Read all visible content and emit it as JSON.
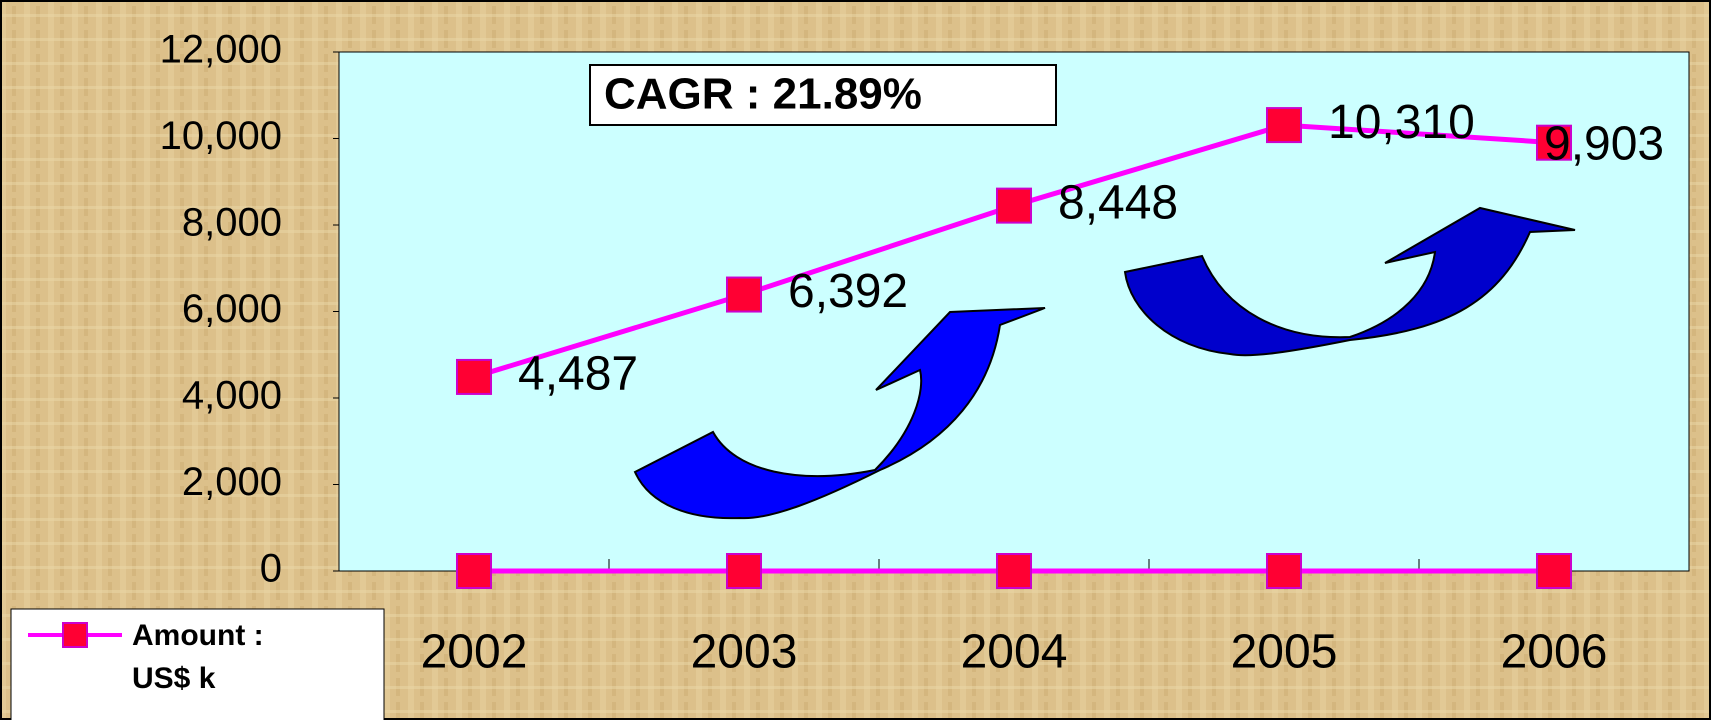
{
  "chart_data": {
    "type": "line",
    "annotation": "CAGR : 21.89%",
    "categories": [
      "2002",
      "2003",
      "2004",
      "2005",
      "2006"
    ],
    "series": [
      {
        "name": "Amount : US$ k",
        "color": "#ff00ff",
        "marker_color": "#ff0033",
        "values": [
          4487,
          6392,
          8448,
          10310,
          9903
        ],
        "value_labels": [
          "4,487",
          "6,392",
          "8,448",
          "10,310",
          "9,903"
        ]
      },
      {
        "color": "#ff00ff",
        "marker_color": "#ff0033",
        "values": [
          0,
          0,
          0,
          0,
          0
        ]
      }
    ],
    "ylim": [
      0,
      12000
    ],
    "yticks": [
      {
        "value": 0,
        "label": "0"
      },
      {
        "value": 2000,
        "label": "2,000"
      },
      {
        "value": 4000,
        "label": "4,000"
      },
      {
        "value": 6000,
        "label": "6,000"
      },
      {
        "value": 8000,
        "label": "8,000"
      },
      {
        "value": 10000,
        "label": "10,000"
      },
      {
        "value": 12000,
        "label": "12,000"
      }
    ],
    "legend": "bottom-left"
  }
}
